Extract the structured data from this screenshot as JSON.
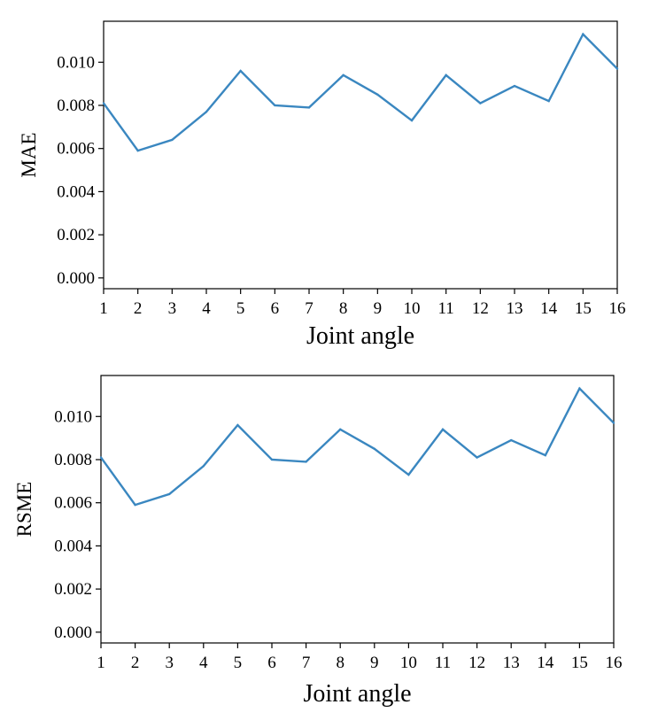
{
  "chart_data": [
    {
      "type": "line",
      "title": "",
      "xlabel": "Joint angle",
      "ylabel": "MAE",
      "x": [
        1,
        2,
        3,
        4,
        5,
        6,
        7,
        8,
        9,
        10,
        11,
        12,
        13,
        14,
        15,
        16
      ],
      "x_ticks": [
        "1",
        "2",
        "3",
        "4",
        "5",
        "6",
        "7",
        "8",
        "9",
        "10",
        "11",
        "12",
        "13",
        "14",
        "15",
        "16"
      ],
      "y_ticks": [
        "0.000",
        "0.002",
        "0.004",
        "0.006",
        "0.008",
        "0.010"
      ],
      "xlim": [
        1,
        16
      ],
      "ylim": [
        -0.0005,
        0.0119
      ],
      "grid": false,
      "series": [
        {
          "color": "#3a87c0",
          "values": [
            0.0081,
            0.0059,
            0.0064,
            0.0077,
            0.0096,
            0.008,
            0.0079,
            0.0094,
            0.0085,
            0.0073,
            0.0094,
            0.0081,
            0.0089,
            0.0082,
            0.0113,
            0.0097
          ]
        }
      ]
    },
    {
      "type": "line",
      "title": "",
      "xlabel": "Joint angle",
      "ylabel": "RSME",
      "x": [
        1,
        2,
        3,
        4,
        5,
        6,
        7,
        8,
        9,
        10,
        11,
        12,
        13,
        14,
        15,
        16
      ],
      "x_ticks": [
        "1",
        "2",
        "3",
        "4",
        "5",
        "6",
        "7",
        "8",
        "9",
        "10",
        "11",
        "12",
        "13",
        "14",
        "15",
        "16"
      ],
      "y_ticks": [
        "0.000",
        "0.002",
        "0.004",
        "0.006",
        "0.008",
        "0.010"
      ],
      "xlim": [
        1,
        16
      ],
      "ylim": [
        -0.0005,
        0.0119
      ],
      "grid": false,
      "series": [
        {
          "color": "#3a87c0",
          "values": [
            0.0081,
            0.0059,
            0.0064,
            0.0077,
            0.0096,
            0.008,
            0.0079,
            0.0094,
            0.0085,
            0.0073,
            0.0094,
            0.0081,
            0.0089,
            0.0082,
            0.0113,
            0.0097
          ]
        }
      ]
    }
  ]
}
